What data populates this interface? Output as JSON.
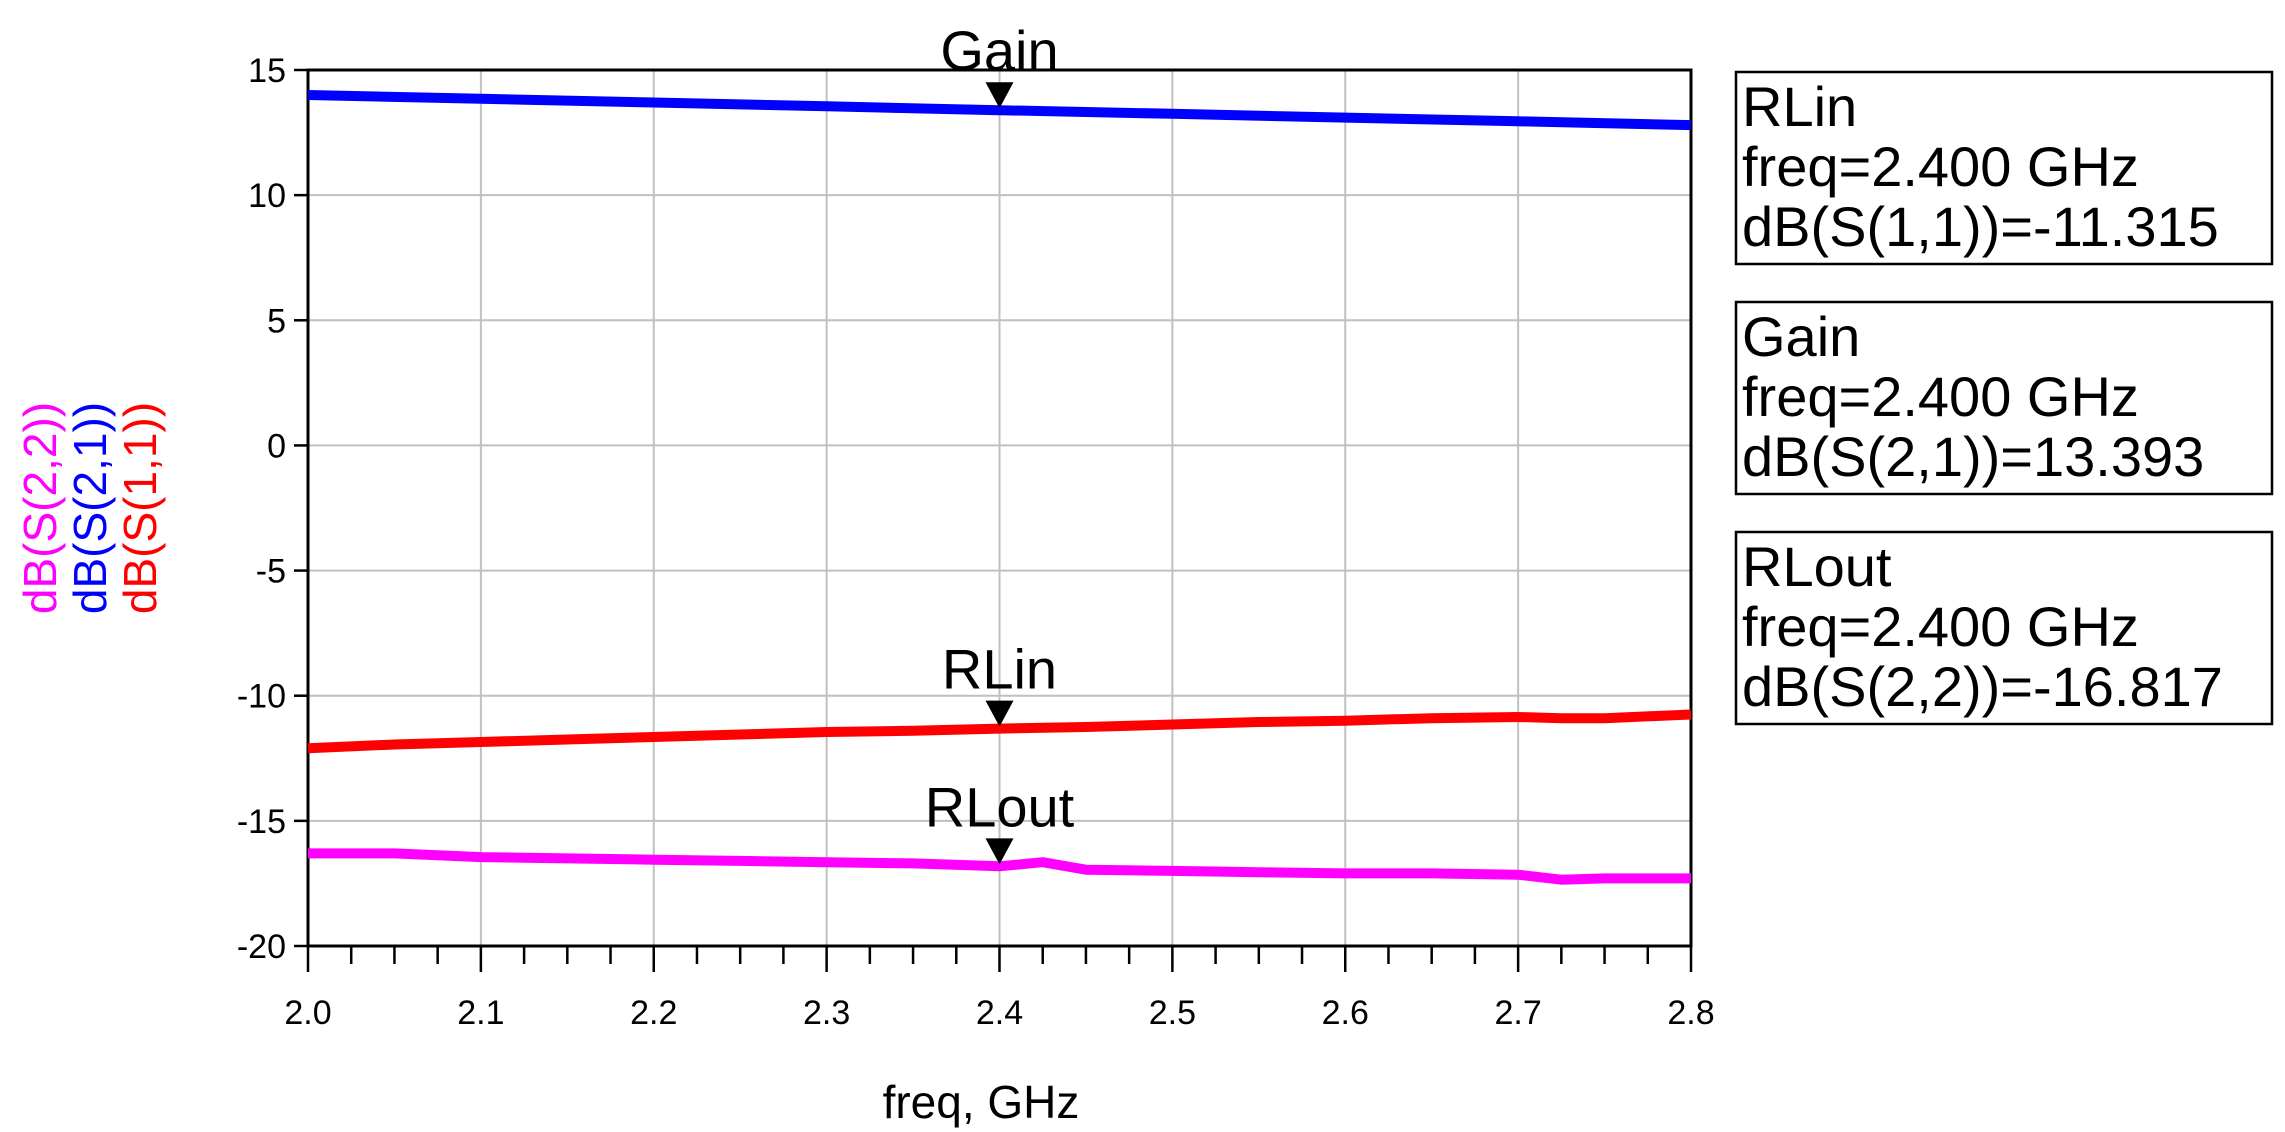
{
  "chart_data": {
    "type": "line",
    "xlabel": "freq, GHz",
    "xlim": [
      2.0,
      2.8
    ],
    "ylim": [
      -20,
      15
    ],
    "x_ticks": [
      "2.0",
      "2.1",
      "2.2",
      "2.3",
      "2.4",
      "2.5",
      "2.6",
      "2.7",
      "2.8"
    ],
    "y_ticks": [
      "15",
      "10",
      "5",
      "0",
      "-5",
      "-10",
      "-15",
      "-20"
    ],
    "grid": true,
    "series": [
      {
        "name": "dB(S(1,1))",
        "color": "#ff0000",
        "x": [
          2.0,
          2.05,
          2.1,
          2.15,
          2.2,
          2.25,
          2.3,
          2.35,
          2.4,
          2.45,
          2.5,
          2.55,
          2.6,
          2.65,
          2.7,
          2.725,
          2.75,
          2.8
        ],
        "y": [
          -12.1,
          -11.95,
          -11.85,
          -11.75,
          -11.65,
          -11.55,
          -11.45,
          -11.4,
          -11.315,
          -11.25,
          -11.15,
          -11.05,
          -11.0,
          -10.9,
          -10.85,
          -10.9,
          -10.9,
          -10.75
        ]
      },
      {
        "name": "dB(S(2,1))",
        "color": "#0000ff",
        "x": [
          2.0,
          2.1,
          2.2,
          2.3,
          2.4,
          2.5,
          2.6,
          2.7,
          2.8
        ],
        "y": [
          14.0,
          13.85,
          13.7,
          13.55,
          13.393,
          13.25,
          13.1,
          12.95,
          12.8
        ]
      },
      {
        "name": "dB(S(2,2))",
        "color": "#ff00ff",
        "x": [
          2.0,
          2.05,
          2.1,
          2.15,
          2.2,
          2.25,
          2.3,
          2.35,
          2.4,
          2.425,
          2.45,
          2.5,
          2.55,
          2.6,
          2.65,
          2.7,
          2.725,
          2.75,
          2.8
        ],
        "y": [
          -16.3,
          -16.3,
          -16.45,
          -16.5,
          -16.55,
          -16.6,
          -16.65,
          -16.7,
          -16.817,
          -16.65,
          -16.95,
          -17.0,
          -17.05,
          -17.1,
          -17.1,
          -17.15,
          -17.35,
          -17.3,
          -17.3
        ]
      }
    ],
    "markers": [
      {
        "label": "Gain",
        "x": 2.4,
        "y": 13.393
      },
      {
        "label": "RLin",
        "x": 2.4,
        "y": -11.315
      },
      {
        "label": "RLout",
        "x": 2.4,
        "y": -16.817
      }
    ],
    "readouts": [
      {
        "lines": [
          "RLin",
          "freq=2.400 GHz",
          "dB(S(1,1))=-11.315"
        ]
      },
      {
        "lines": [
          "Gain",
          "freq=2.400 GHz",
          "dB(S(2,1))=13.393"
        ]
      },
      {
        "lines": [
          "RLout",
          "freq=2.400 GHz",
          "dB(S(2,2))=-16.817"
        ]
      }
    ]
  }
}
